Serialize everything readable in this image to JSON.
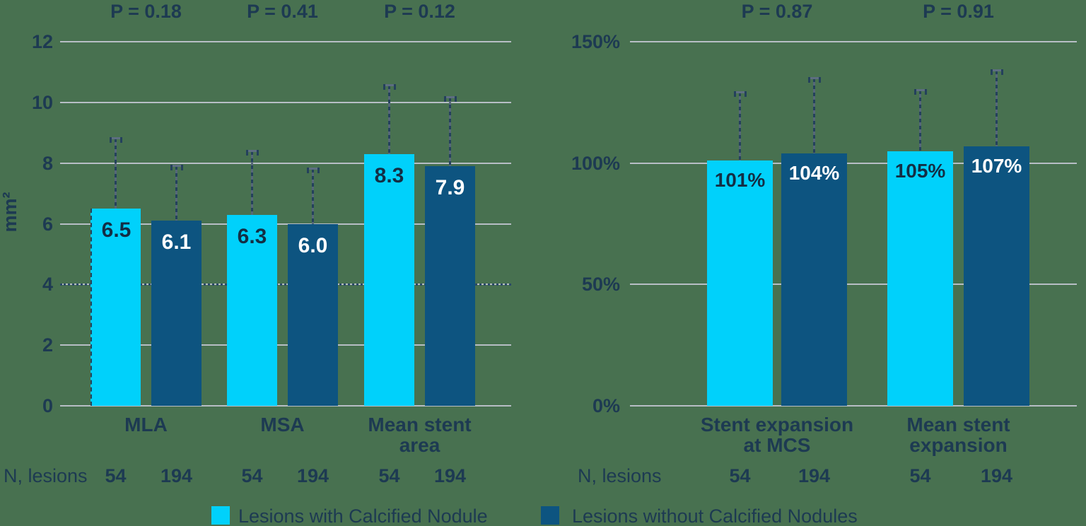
{
  "background_color": "#487150",
  "text_color": "#1d3a52",
  "value_label_colors": {
    "on_cyan": "#132e45",
    "on_dark_blue": "#ffffff"
  },
  "grid_color": "#b7bec5",
  "error_bar_color": "#566879",
  "legend": {
    "items": [
      {
        "label": "Lesions with Calcified Nodule",
        "color": "#00d1fb"
      },
      {
        "label": "Lesions without Calcified Nodules",
        "color": "#0d5480"
      }
    ]
  },
  "chart_data": [
    {
      "type": "bar",
      "title": "",
      "ylabel": "mm²",
      "ylim": [
        0,
        12
      ],
      "yticks": [
        0,
        2,
        4,
        6,
        8,
        10,
        12
      ],
      "ytick_labels": [
        "0",
        "2",
        "4",
        "6",
        "8",
        "10",
        "12"
      ],
      "grid": true,
      "reference_line": {
        "value": 4,
        "style": "dotted"
      },
      "categories": [
        "MLA",
        "MSA",
        "Mean stent\narea"
      ],
      "p_values": [
        "P = 0.18",
        "P = 0.41",
        "P = 0.12"
      ],
      "n_label": "N, lesions",
      "series": [
        {
          "name": "Lesions with Calcified Nodule",
          "color": "#00d1fb",
          "values": [
            6.5,
            6.3,
            8.3
          ],
          "value_labels": [
            "6.5",
            "6.3",
            "8.3"
          ],
          "whisker_top": [
            8.8,
            8.4,
            10.55
          ],
          "n": [
            "54",
            "54",
            "54"
          ]
        },
        {
          "name": "Lesions without Calcified Nodules",
          "color": "#0d5480",
          "values": [
            6.1,
            6.0,
            7.9
          ],
          "value_labels": [
            "6.1",
            "6.0",
            "7.9"
          ],
          "whisker_top": [
            7.9,
            7.8,
            10.15
          ],
          "n": [
            "194",
            "194",
            "194"
          ]
        }
      ]
    },
    {
      "type": "bar",
      "title": "",
      "ylabel": "",
      "ylim": [
        0,
        150
      ],
      "yticks": [
        0,
        50,
        100,
        150
      ],
      "ytick_labels": [
        "0%",
        "50%",
        "100%",
        "150%"
      ],
      "grid": true,
      "reference_line": null,
      "categories": [
        "Stent expansion\nat MCS",
        "Mean stent\nexpansion"
      ],
      "p_values": [
        "P = 0.87",
        "P = 0.91"
      ],
      "n_label": "N, lesions",
      "series": [
        {
          "name": "Lesions with Calcified Nodule",
          "color": "#00d1fb",
          "values": [
            101,
            105
          ],
          "value_labels": [
            "101%",
            "105%"
          ],
          "whisker_top": [
            129,
            130
          ],
          "n": [
            "54",
            "54"
          ]
        },
        {
          "name": "Lesions without Calcified Nodules",
          "color": "#0d5480",
          "values": [
            104,
            107
          ],
          "value_labels": [
            "104%",
            "107%"
          ],
          "whisker_top": [
            135,
            138
          ],
          "n": [
            "194",
            "194"
          ]
        }
      ]
    }
  ]
}
